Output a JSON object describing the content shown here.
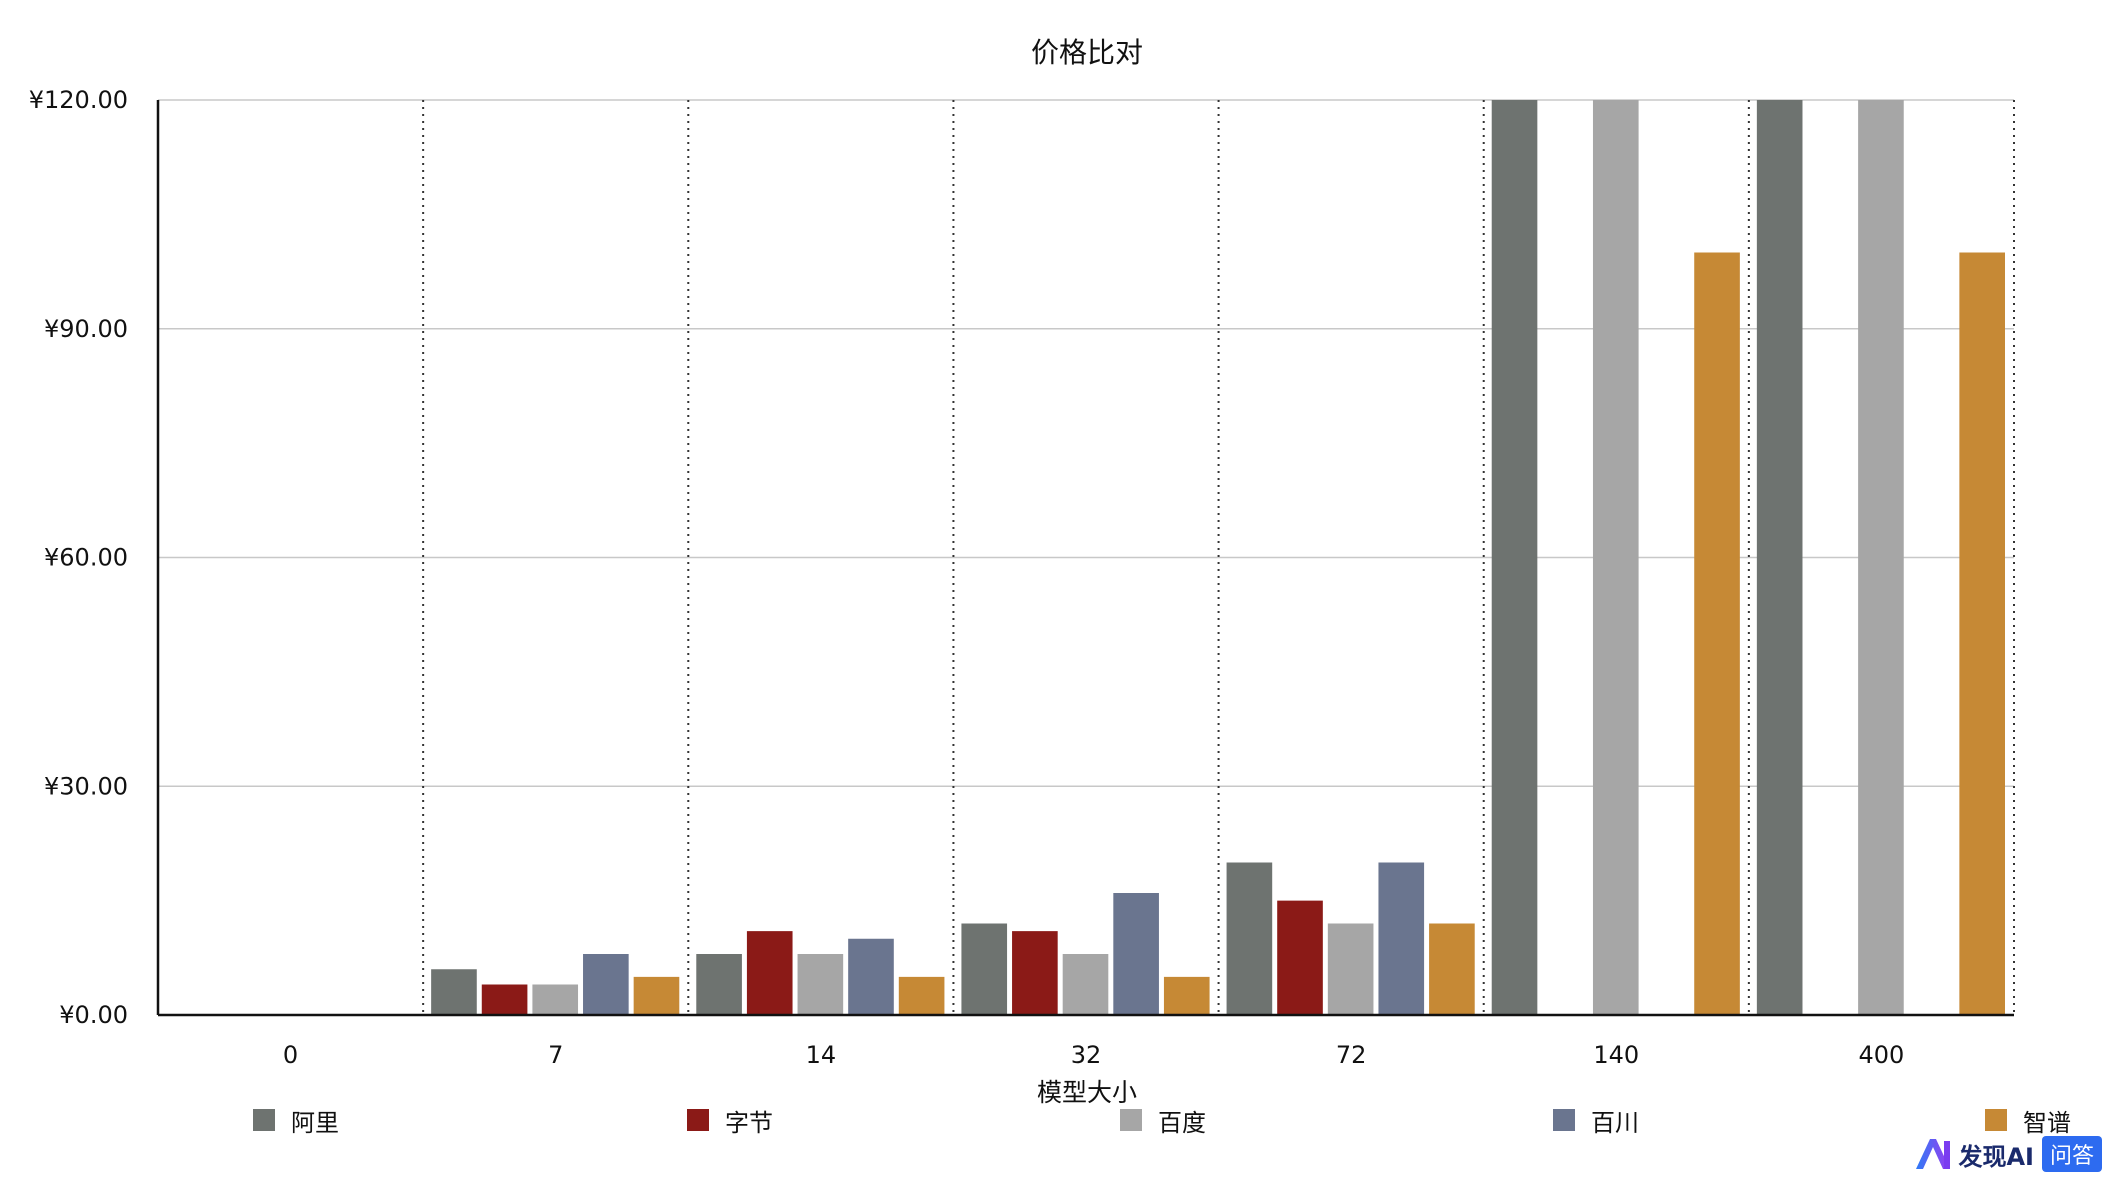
{
  "chart_data": {
    "type": "bar",
    "title": "价格比对",
    "xlabel": "模型大小",
    "ylabel": "",
    "categories": [
      "0",
      "7",
      "14",
      "32",
      "72",
      "140",
      "400"
    ],
    "ylim": [
      0,
      120
    ],
    "yticks": [
      "¥0.00",
      "¥30.00",
      "¥60.00",
      "¥90.00",
      "¥120.00"
    ],
    "ytick_values": [
      0,
      30,
      60,
      90,
      120
    ],
    "grid": true,
    "legend_position": "bottom",
    "series": [
      {
        "name": "阿里",
        "color": "#6e7370",
        "values": [
          0,
          6,
          8,
          12,
          20,
          120,
          120
        ]
      },
      {
        "name": "字节",
        "color": "#8b1a17",
        "values": [
          0,
          4,
          11,
          11,
          15,
          0,
          0
        ]
      },
      {
        "name": "百度",
        "color": "#a6a6a6",
        "values": [
          0,
          4,
          8,
          8,
          12,
          120,
          120
        ]
      },
      {
        "name": "百川",
        "color": "#6a758f",
        "values": [
          0,
          8,
          10,
          16,
          20,
          0,
          0
        ]
      },
      {
        "name": "智谱",
        "color": "#c68935",
        "values": [
          0,
          5,
          5,
          5,
          12,
          100,
          100
        ]
      }
    ]
  },
  "watermark": {
    "brand": "发现AI",
    "badge": "问答"
  }
}
